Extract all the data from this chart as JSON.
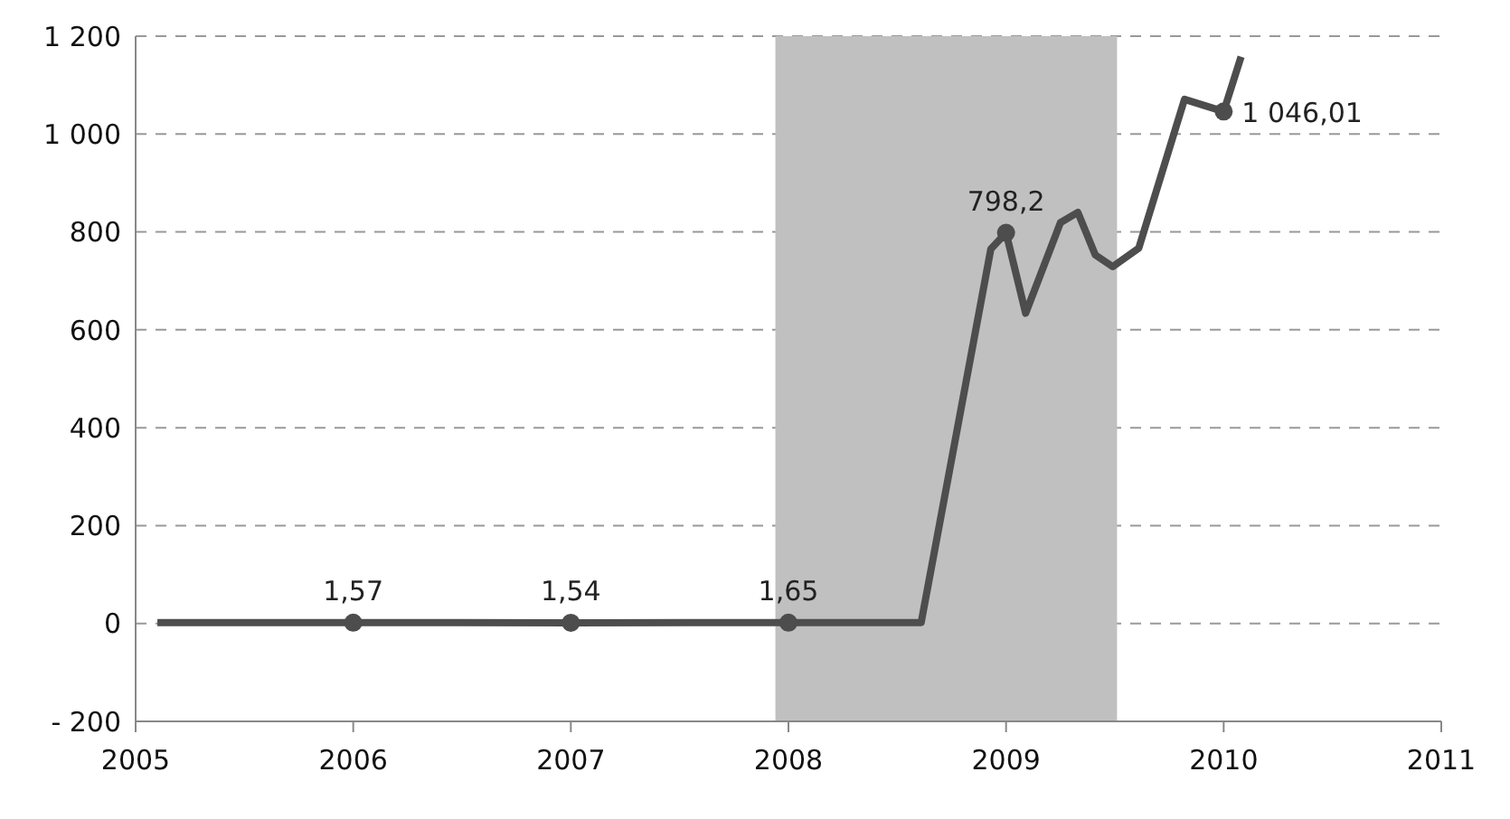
{
  "chart_data": {
    "type": "line",
    "xlim": [
      2005,
      2011
    ],
    "xticks": [
      2005,
      2006,
      2007,
      2008,
      2009,
      2010,
      2011
    ],
    "ylim": [
      -200,
      1200
    ],
    "yticks": [
      {
        "value": -200,
        "label": "- 200"
      },
      0,
      200,
      400,
      600,
      800,
      {
        "value": 1000,
        "label": "1 000"
      },
      {
        "value": 1200,
        "label": "1 200"
      }
    ],
    "grid": "y",
    "bands": [
      {
        "axis": "x",
        "from": 2007.94,
        "to": 2009.51,
        "color": "#c0c0c0"
      }
    ],
    "series": [
      {
        "color": "#4d4d4d",
        "x": [
          2005.1,
          2006,
          2007,
          2008,
          2008.61,
          2008.93,
          2009,
          2009.09,
          2009.25,
          2009.33,
          2009.41,
          2009.49,
          2009.61,
          2009.82,
          2010,
          2010.08
        ],
        "values": [
          2,
          1.57,
          1.54,
          1.65,
          2,
          765,
          798.2,
          634,
          819,
          840,
          753,
          729,
          767,
          1071,
          1046.01,
          1158
        ]
      },
      {
        "type": "scatter",
        "color": "#4d4d4d",
        "marker": "circle",
        "x": [
          2006,
          2007,
          2008,
          2009,
          2010
        ],
        "values": [
          1.57,
          1.54,
          1.65,
          798.2,
          1046.01
        ],
        "value_labels": [
          "1,57",
          "1,54",
          "1,65",
          "798,2",
          "1 046,01"
        ]
      }
    ]
  }
}
